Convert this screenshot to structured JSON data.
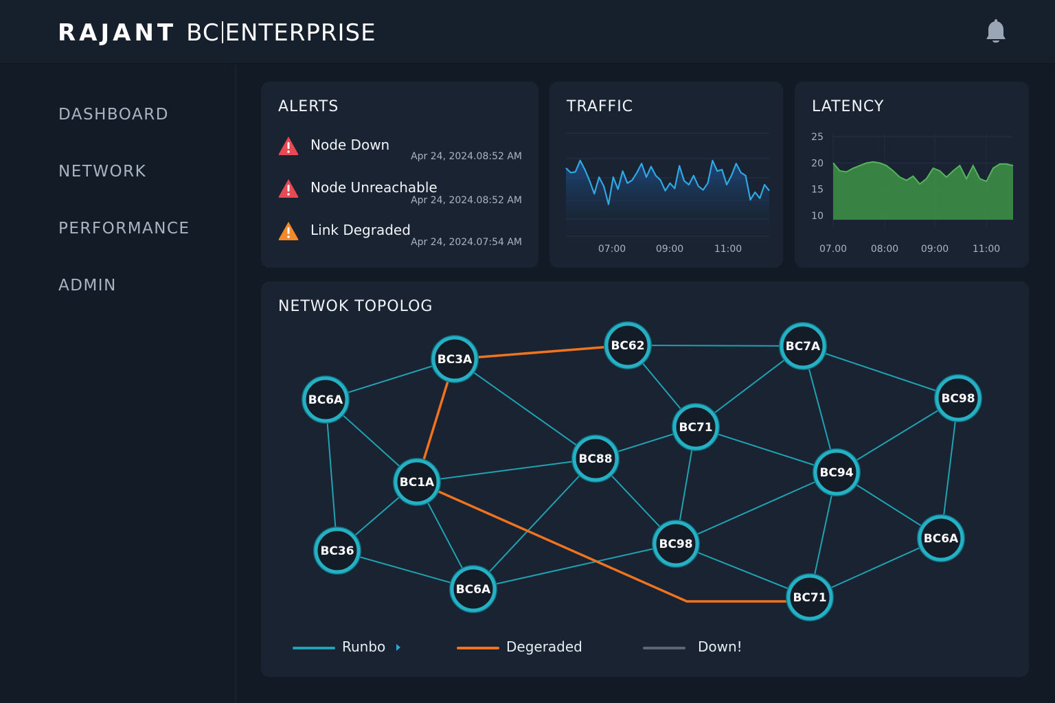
{
  "header": {
    "brand_strong": "RAJANT",
    "brand_bc": "BC",
    "brand_product": "ENTERPRISE",
    "bell_icon": "bell-icon"
  },
  "sidebar": {
    "items": [
      {
        "label": "DASHBOARD"
      },
      {
        "label": "NETWORK"
      },
      {
        "label": "PERFORMANCE"
      },
      {
        "label": "ADMIN"
      }
    ]
  },
  "alerts": {
    "title": "ALERTS",
    "items": [
      {
        "title": "Node Down",
        "time": "Apr 24, 2024.08:52 AM",
        "severity": "critical",
        "color": "#e84a55",
        "icon": "warning-triangle-icon"
      },
      {
        "title": "Node Unreachable",
        "time": "Apr 24, 2024.08:52 AM",
        "severity": "critical",
        "color": "#e84a55",
        "icon": "warning-triangle-icon"
      },
      {
        "title": "Link Degraded",
        "time": "Apr 24, 2024.07:54 AM",
        "severity": "warning",
        "color": "#f08a2c",
        "icon": "warning-triangle-icon"
      }
    ]
  },
  "traffic": {
    "title": "TRAFFIC",
    "color": "#2fa8e6",
    "chart_data": {
      "type": "line",
      "title": "TRAFFIC",
      "x_ticks": [
        "07:00",
        "09:00",
        "11:00"
      ],
      "values": [
        0.72,
        0.66,
        0.67,
        0.82,
        0.7,
        0.55,
        0.38,
        0.6,
        0.48,
        0.24,
        0.6,
        0.44,
        0.68,
        0.52,
        0.56,
        0.66,
        0.78,
        0.6,
        0.74,
        0.62,
        0.56,
        0.42,
        0.52,
        0.45,
        0.75,
        0.55,
        0.5,
        0.62,
        0.48,
        0.43,
        0.52,
        0.82,
        0.68,
        0.7,
        0.5,
        0.62,
        0.78,
        0.66,
        0.62,
        0.3,
        0.4,
        0.32,
        0.5,
        0.42
      ]
    }
  },
  "latency": {
    "title": "LATENCY",
    "color": "#3f9a48",
    "chart_data": {
      "type": "area",
      "title": "LATENCY",
      "y_ticks": [
        "25",
        "20",
        "15",
        "10"
      ],
      "ylim": [
        8,
        27
      ],
      "x_ticks": [
        "07.00",
        "08:00",
        "09:00",
        "11:00"
      ],
      "values": [
        20,
        18.5,
        18.3,
        19,
        19.5,
        20,
        20.2,
        20,
        19.5,
        18.5,
        17.3,
        16.7,
        17.5,
        16,
        17,
        19,
        18.5,
        17.3,
        18.5,
        19.5,
        17,
        19.5,
        17,
        16.5,
        19,
        19.8,
        19.8,
        19.5
      ]
    }
  },
  "topology": {
    "title": "NETWOK TOPOLOG",
    "node_color": "#25b0c4",
    "nodes": [
      {
        "label": "BC3A"
      },
      {
        "label": "BC62"
      },
      {
        "label": "BC7A"
      },
      {
        "label": "BC6A"
      },
      {
        "label": "BC98"
      },
      {
        "label": "BC71"
      },
      {
        "label": "BC88"
      },
      {
        "label": "BC1A"
      },
      {
        "label": "BC94"
      },
      {
        "label": "BC36"
      },
      {
        "label": "BC98"
      },
      {
        "label": "BC6A"
      },
      {
        "label": "BC6A"
      },
      {
        "label": "BC71"
      }
    ],
    "links": [
      {
        "from": 3,
        "to": 0,
        "status": "running"
      },
      {
        "from": 0,
        "to": 1,
        "status": "degraded"
      },
      {
        "from": 1,
        "to": 2,
        "status": "running"
      },
      {
        "from": 2,
        "to": 4,
        "status": "running"
      },
      {
        "from": 0,
        "to": 7,
        "status": "degraded"
      },
      {
        "from": 0,
        "to": 6,
        "status": "running"
      },
      {
        "from": 1,
        "to": 5,
        "status": "running"
      },
      {
        "from": 2,
        "to": 5,
        "status": "running"
      },
      {
        "from": 2,
        "to": 8,
        "status": "running"
      },
      {
        "from": 4,
        "to": 8,
        "status": "running"
      },
      {
        "from": 4,
        "to": 12,
        "status": "running"
      },
      {
        "from": 3,
        "to": 7,
        "status": "running"
      },
      {
        "from": 3,
        "to": 9,
        "status": "running"
      },
      {
        "from": 7,
        "to": 6,
        "status": "running"
      },
      {
        "from": 6,
        "to": 5,
        "status": "running"
      },
      {
        "from": 5,
        "to": 8,
        "status": "running"
      },
      {
        "from": 5,
        "to": 10,
        "status": "running"
      },
      {
        "from": 6,
        "to": 10,
        "status": "running"
      },
      {
        "from": 6,
        "to": 11,
        "status": "running"
      },
      {
        "from": 7,
        "to": 9,
        "status": "running"
      },
      {
        "from": 7,
        "to": 11,
        "status": "running"
      },
      {
        "from": 9,
        "to": 11,
        "status": "running"
      },
      {
        "from": 11,
        "to": 10,
        "status": "running"
      },
      {
        "from": 10,
        "to": 8,
        "status": "running"
      },
      {
        "from": 10,
        "to": 13,
        "status": "running"
      },
      {
        "from": 8,
        "to": 12,
        "status": "running"
      },
      {
        "from": 8,
        "to": 13,
        "status": "running"
      },
      {
        "from": 12,
        "to": 13,
        "status": "running"
      },
      {
        "from": 7,
        "to": 13,
        "status": "degraded"
      }
    ],
    "legend": [
      {
        "label": "Runbo",
        "color": "#1fa3b3"
      },
      {
        "label": "Degeraded",
        "color": "#f0731e"
      },
      {
        "label": "Down!",
        "color": "#5b6673"
      }
    ],
    "running_color": "#1fa3b3",
    "degraded_color": "#f0731e"
  }
}
